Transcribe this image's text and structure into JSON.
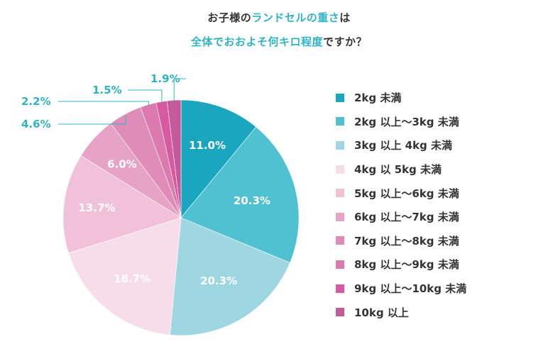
{
  "title": {
    "line1_a": "お子様の",
    "line1_b": "ランドセルの重さ",
    "line1_c": "は",
    "line2_a": "全体でおおよそ何キロ程度",
    "line2_b": "ですか？"
  },
  "colors": {
    "title_dark": "#333333",
    "title_accent": "#2fb3c6",
    "outside_label": "#2fb3c6"
  },
  "chart_data": {
    "type": "pie",
    "title": "お子様のランドセルの重さは全体でおおよそ何キロ程度ですか？",
    "start": "12 o'clock, clockwise",
    "legend_position": "right",
    "slices": [
      {
        "label": "2kg 未満",
        "value": 11.0,
        "display": "11.0%",
        "color": "#1aa6bf"
      },
      {
        "label": "2kg 以上～3kg 未満",
        "value": 20.3,
        "display": "20.3%",
        "color": "#4fc1d1"
      },
      {
        "label": "3kg 以上 4kg 未満",
        "value": 20.3,
        "display": "20.3%",
        "color": "#9ed7e1"
      },
      {
        "label": "4kg 以 5kg 未満",
        "value": 18.7,
        "display": "18.7%",
        "color": "#f6dde9"
      },
      {
        "label": "5kg 以上～6kg 未満",
        "value": 13.7,
        "display": "13.7%",
        "color": "#f0c1d9"
      },
      {
        "label": "6kg 以上～7kg 未満",
        "value": 6.0,
        "display": "6.0%",
        "color": "#e7a3c6"
      },
      {
        "label": "7kg 以上～8kg 未満",
        "value": 4.6,
        "display": "4.6%",
        "color": "#e08cb9"
      },
      {
        "label": "8kg 以上～9kg 未満",
        "value": 2.2,
        "display": "2.2%",
        "color": "#dc7ab0"
      },
      {
        "label": "9kg 以上～10kg 未満",
        "value": 1.5,
        "display": "1.5%",
        "color": "#d75aa0"
      },
      {
        "label": "10kg 以上",
        "value": 1.9,
        "display": "1.9%",
        "color": "#c45a9a"
      }
    ]
  }
}
